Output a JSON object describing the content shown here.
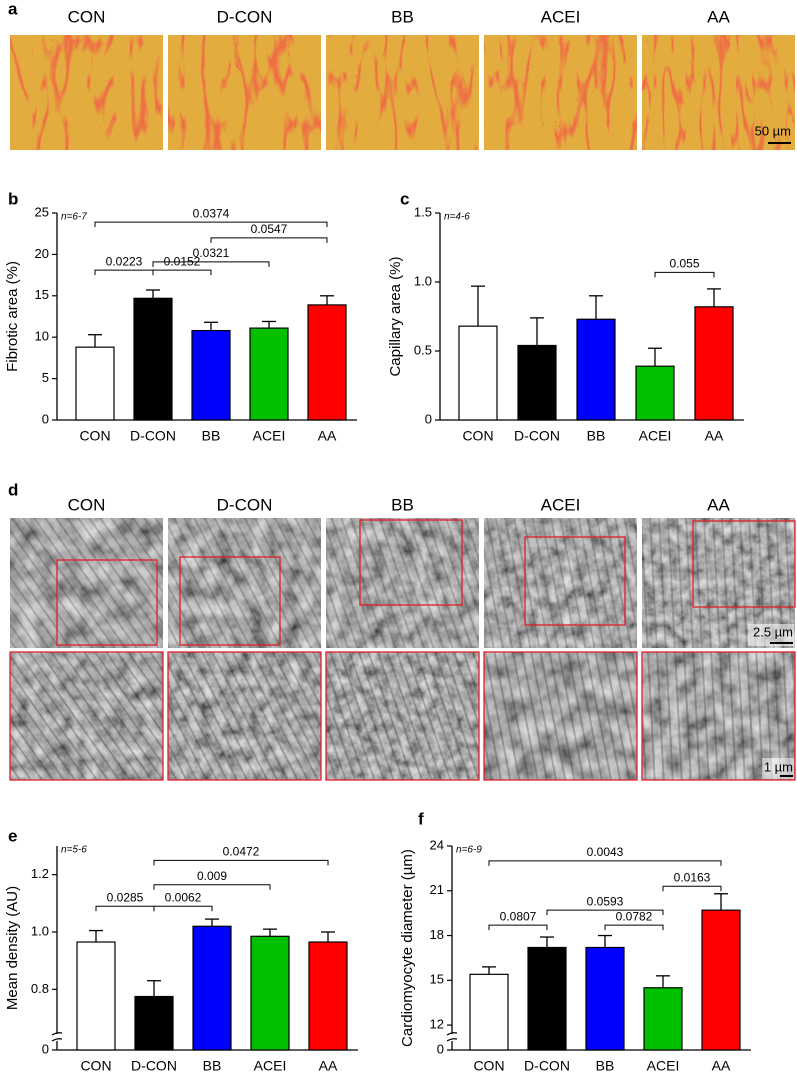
{
  "panels": {
    "a": {
      "label": "a",
      "groups": [
        "CON",
        "D-CON",
        "BB",
        "ACEI",
        "AA"
      ],
      "scale_bar": "50 µm"
    },
    "d": {
      "label": "d",
      "groups": [
        "CON",
        "D-CON",
        "BB",
        "ACEI",
        "AA"
      ],
      "scale_bar_top": "2.5 µm",
      "scale_bar_bottom": "1 µm"
    }
  },
  "chart_data": [
    {
      "type": "bar",
      "panel_label": "b",
      "ylabel": "Fibrotic area (%)",
      "note": "n=6-7",
      "categories": [
        "CON",
        "D-CON",
        "BB",
        "ACEI",
        "AA"
      ],
      "values": [
        8.8,
        14.7,
        10.8,
        11.1,
        13.9
      ],
      "errors": [
        1.5,
        1.0,
        1.0,
        0.8,
        1.1
      ],
      "colors": [
        "#ffffff",
        "#000000",
        "#0000ff",
        "#00c000",
        "#ff0000"
      ],
      "ylim": [
        0,
        25
      ],
      "yticks": [
        0,
        5,
        10,
        15,
        20,
        25
      ],
      "comparisons": [
        {
          "between": [
            0,
            4
          ],
          "y": 23.9,
          "label": "0.0374"
        },
        {
          "between": [
            2,
            4
          ],
          "y": 22.0,
          "label": "0.0547"
        },
        {
          "between": [
            1,
            3
          ],
          "y": 19.1,
          "label": "0.0321"
        },
        {
          "between": [
            0,
            1
          ],
          "y": 18.1,
          "label": "0.0223"
        },
        {
          "between": [
            1,
            2
          ],
          "y": 18.1,
          "label": "0.0152"
        }
      ]
    },
    {
      "type": "bar",
      "panel_label": "c",
      "ylabel": "Capillary area (%)",
      "note": "n=4-6",
      "categories": [
        "CON",
        "D-CON",
        "BB",
        "ACEI",
        "AA"
      ],
      "values": [
        0.68,
        0.54,
        0.73,
        0.39,
        0.82
      ],
      "errors": [
        0.29,
        0.2,
        0.17,
        0.13,
        0.13
      ],
      "colors": [
        "#ffffff",
        "#000000",
        "#0000ff",
        "#00c000",
        "#ff0000"
      ],
      "ylim": [
        0,
        1.5
      ],
      "yticks": [
        0,
        0.5,
        {
          "value": 1,
          "label": "1.0"
        },
        1.5
      ],
      "comparisons": [
        {
          "between": [
            3,
            4
          ],
          "y": 1.07,
          "label": "0.055"
        }
      ]
    },
    {
      "type": "bar",
      "panel_label": "e",
      "ylabel": "Mean density (AU)",
      "note": "n=5-6",
      "axis_break": true,
      "categories": [
        "CON",
        "D-CON",
        "BB",
        "ACEI",
        "AA"
      ],
      "values": [
        0.965,
        0.775,
        1.02,
        0.985,
        0.965
      ],
      "errors": [
        0.04,
        0.055,
        0.025,
        0.025,
        0.035
      ],
      "colors": [
        "#ffffff",
        "#000000",
        "#0000ff",
        "#00c000",
        "#ff0000"
      ],
      "ylim": [
        0.7,
        1.3
      ],
      "yticks": [
        0,
        0.8,
        {
          "value": 1,
          "label": "1.0"
        },
        1.2
      ],
      "comparisons": [
        {
          "between": [
            1,
            4
          ],
          "y": 1.25,
          "label": "0.0472"
        },
        {
          "between": [
            1,
            3
          ],
          "y": 1.165,
          "label": "0.009"
        },
        {
          "between": [
            0,
            1
          ],
          "y": 1.09,
          "label": "0.0285"
        },
        {
          "between": [
            1,
            2
          ],
          "y": 1.09,
          "label": "0.0062"
        }
      ]
    },
    {
      "type": "bar",
      "panel_label": "f",
      "ylabel": "Cardiomyocyte diameter (µm)",
      "note": "n=6-9",
      "axis_break": true,
      "categories": [
        "CON",
        "D-CON",
        "BB",
        "ACEI",
        "AA"
      ],
      "values": [
        15.4,
        17.2,
        17.2,
        14.5,
        19.7
      ],
      "errors": [
        0.5,
        0.7,
        0.8,
        0.8,
        1.1
      ],
      "colors": [
        "#ffffff",
        "#000000",
        "#0000ff",
        "#00c000",
        "#ff0000"
      ],
      "ylim": [
        11,
        24
      ],
      "yticks": [
        0,
        12,
        15,
        18,
        21,
        24
      ],
      "comparisons": [
        {
          "between": [
            0,
            4
          ],
          "y": 23.0,
          "label": "0.0043"
        },
        {
          "between": [
            3,
            4
          ],
          "y": 21.3,
          "label": "0.0163"
        },
        {
          "between": [
            1,
            3
          ],
          "y": 19.7,
          "label": "0.0593"
        },
        {
          "between": [
            0,
            1
          ],
          "y": 18.7,
          "label": "0.0807"
        },
        {
          "between": [
            2,
            3
          ],
          "y": 18.7,
          "label": "0.0782"
        }
      ]
    }
  ]
}
